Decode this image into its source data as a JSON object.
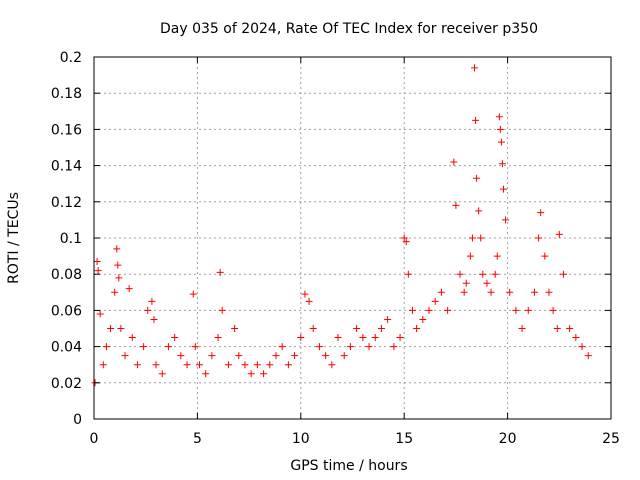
{
  "chart_data": {
    "type": "scatter",
    "title": "Day 035 of 2024, Rate Of TEC Index for receiver p350",
    "xlabel": "GPS time / hours",
    "ylabel": "ROTI / TECUs",
    "xlim": [
      0,
      25
    ],
    "ylim": [
      0,
      0.2
    ],
    "x_ticks": [
      0,
      5,
      10,
      15,
      20,
      25
    ],
    "x_tick_labels": [
      "0",
      "5",
      "10",
      "15",
      "20",
      "25"
    ],
    "y_ticks": [
      0,
      0.02,
      0.04,
      0.06,
      0.08,
      0.1,
      0.12,
      0.14,
      0.16,
      0.18,
      0.2
    ],
    "y_tick_labels": [
      "0",
      "0.02",
      "0.04",
      "0.06",
      "0.08",
      "0.1",
      "0.12",
      "0.14",
      "0.16",
      "0.18",
      "0.2"
    ],
    "grid": true,
    "marker": "plus",
    "color": "#ff0000",
    "series": [
      {
        "x": [
          0.05,
          0.15,
          0.2,
          0.3,
          0.45,
          0.6,
          0.8,
          1.0,
          1.1,
          1.15,
          1.2,
          1.3,
          1.5,
          1.7,
          1.85,
          2.1,
          2.4,
          2.6,
          2.8,
          2.9,
          3.0,
          3.3,
          3.6,
          3.9,
          4.2,
          4.5,
          4.8,
          4.9,
          5.1,
          5.4,
          5.7,
          6.0,
          6.1,
          6.2,
          6.5,
          6.8,
          7.0,
          7.3,
          7.6,
          7.9,
          8.2,
          8.5,
          8.8,
          9.1,
          9.4,
          9.7,
          10.0,
          10.2,
          10.4,
          10.6,
          10.9,
          11.2,
          11.5,
          11.8,
          12.1,
          12.4,
          12.7,
          13.0,
          13.3,
          13.6,
          13.9,
          14.2,
          14.5,
          14.8,
          15.0,
          15.1,
          15.2,
          15.4,
          15.6,
          15.9,
          16.2,
          16.5,
          16.8,
          17.1,
          17.4,
          17.5,
          17.7,
          17.9,
          18.0,
          18.2,
          18.3,
          18.4,
          18.45,
          18.5,
          18.6,
          18.7,
          18.8,
          19.0,
          19.2,
          19.4,
          19.5,
          19.6,
          19.65,
          19.7,
          19.75,
          19.8,
          19.9,
          20.1,
          20.4,
          20.7,
          21.0,
          21.3,
          21.5,
          21.6,
          21.8,
          22.0,
          22.2,
          22.4,
          22.5,
          22.7,
          23.0,
          23.3,
          23.6,
          23.9
        ],
        "y": [
          0.02,
          0.087,
          0.082,
          0.058,
          0.03,
          0.04,
          0.05,
          0.07,
          0.094,
          0.085,
          0.078,
          0.05,
          0.035,
          0.072,
          0.045,
          0.03,
          0.04,
          0.06,
          0.065,
          0.055,
          0.03,
          0.025,
          0.04,
          0.045,
          0.035,
          0.03,
          0.069,
          0.04,
          0.03,
          0.025,
          0.035,
          0.045,
          0.081,
          0.06,
          0.03,
          0.05,
          0.035,
          0.03,
          0.025,
          0.03,
          0.025,
          0.03,
          0.035,
          0.04,
          0.03,
          0.035,
          0.045,
          0.069,
          0.065,
          0.05,
          0.04,
          0.035,
          0.03,
          0.045,
          0.035,
          0.04,
          0.05,
          0.045,
          0.04,
          0.045,
          0.05,
          0.055,
          0.04,
          0.045,
          0.1,
          0.098,
          0.08,
          0.06,
          0.05,
          0.055,
          0.06,
          0.065,
          0.07,
          0.06,
          0.142,
          0.118,
          0.08,
          0.07,
          0.075,
          0.09,
          0.1,
          0.194,
          0.165,
          0.133,
          0.115,
          0.1,
          0.08,
          0.075,
          0.07,
          0.08,
          0.09,
          0.167,
          0.16,
          0.153,
          0.141,
          0.127,
          0.11,
          0.07,
          0.06,
          0.05,
          0.06,
          0.07,
          0.1,
          0.114,
          0.09,
          0.07,
          0.06,
          0.05,
          0.102,
          0.08,
          0.05,
          0.045,
          0.04,
          0.035
        ]
      }
    ]
  }
}
